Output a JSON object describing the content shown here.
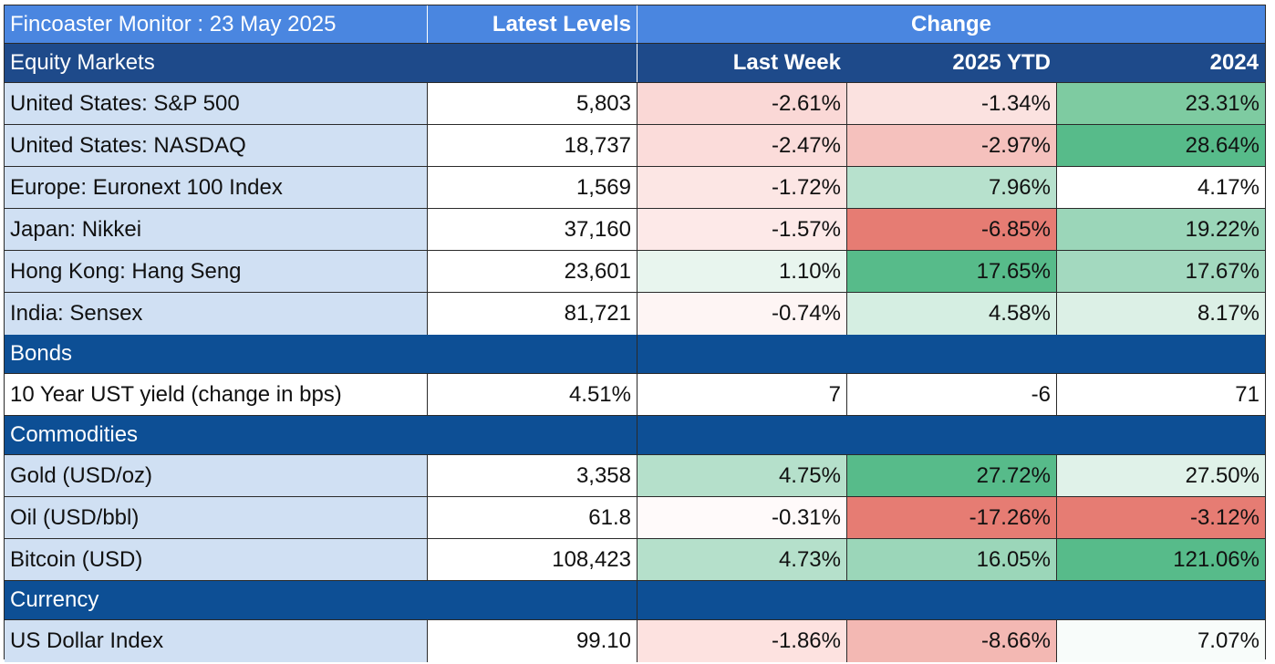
{
  "header": {
    "title": "Fincoaster Monitor : 23 May 2025",
    "latest_levels": "Latest Levels",
    "change": "Change"
  },
  "subheader": {
    "section": "Equity Markets",
    "last_week": "Last Week",
    "ytd": "2025 YTD",
    "year": "2024"
  },
  "equity": [
    {
      "name": "United States: S&P 500",
      "level": "5,803",
      "week": "-2.61%",
      "ytd": "-1.34%",
      "y2024": "23.31%",
      "week_color": "#fad8d6",
      "ytd_color": "#fbe2e0",
      "y2024_color": "#7ecba1"
    },
    {
      "name": "United States: NASDAQ",
      "level": "18,737",
      "week": "-2.47%",
      "ytd": "-2.97%",
      "y2024": "28.64%",
      "week_color": "#fbdcda",
      "ytd_color": "#f5c1bd",
      "y2024_color": "#57bb8a"
    },
    {
      "name": "Europe: Euronext 100 Index",
      "level": "1,569",
      "week": "-1.72%",
      "ytd": "7.96%",
      "y2024": "4.17%",
      "week_color": "#fce6e4",
      "ytd_color": "#b7e1cd",
      "y2024_color": "#ffffff"
    },
    {
      "name": "Japan: Nikkei",
      "level": "37,160",
      "week": "-1.57%",
      "ytd": "-6.85%",
      "y2024": "19.22%",
      "week_color": "#fde9e8",
      "ytd_color": "#e67c73",
      "y2024_color": "#9bd6b9"
    },
    {
      "name": "Hong Kong: Hang Seng",
      "level": "23,601",
      "week": "1.10%",
      "ytd": "17.65%",
      "y2024": "17.67%",
      "week_color": "#e8f5ee",
      "ytd_color": "#57bb8a",
      "y2024_color": "#a3d9bf"
    },
    {
      "name": "India: Sensex",
      "level": "81,721",
      "week": "-0.74%",
      "ytd": "4.58%",
      "y2024": "8.17%",
      "week_color": "#fef5f4",
      "ytd_color": "#d5eee2",
      "y2024_color": "#dcf0e6"
    }
  ],
  "bonds": {
    "section": "Bonds",
    "rows": [
      {
        "name": "10 Year UST yield (change in bps)",
        "level": "4.51%",
        "week": "7",
        "ytd": "-6",
        "y2024": "71",
        "week_color": "#ffffff",
        "ytd_color": "#ffffff",
        "y2024_color": "#ffffff"
      }
    ]
  },
  "commodities": {
    "section": "Commodities",
    "rows": [
      {
        "name": "Gold (USD/oz)",
        "level": "3,358",
        "week": "4.75%",
        "ytd": "27.72%",
        "y2024": "27.50%",
        "week_color": "#b5e0cb",
        "ytd_color": "#57bb8a",
        "y2024_color": "#e0f2e9"
      },
      {
        "name": "Oil (USD/bbl)",
        "level": "61.8",
        "week": "-0.31%",
        "ytd": "-17.26%",
        "y2024": "-3.12%",
        "week_color": "#fffafa",
        "ytd_color": "#e67c73",
        "y2024_color": "#e67c73"
      },
      {
        "name": "Bitcoin (USD)",
        "level": "108,423",
        "week": "4.73%",
        "ytd": "16.05%",
        "y2024": "121.06%",
        "week_color": "#b5e0cb",
        "ytd_color": "#9bd6b9",
        "y2024_color": "#57bb8a"
      }
    ]
  },
  "currency": {
    "section": "Currency",
    "rows": [
      {
        "name": "US Dollar Index",
        "level": "99.10",
        "week": "-1.86%",
        "ytd": "-8.66%",
        "y2024": "7.07%",
        "week_color": "#fde2e0",
        "ytd_color": "#f3b8b3",
        "y2024_color": "#f8fcfa"
      }
    ]
  }
}
